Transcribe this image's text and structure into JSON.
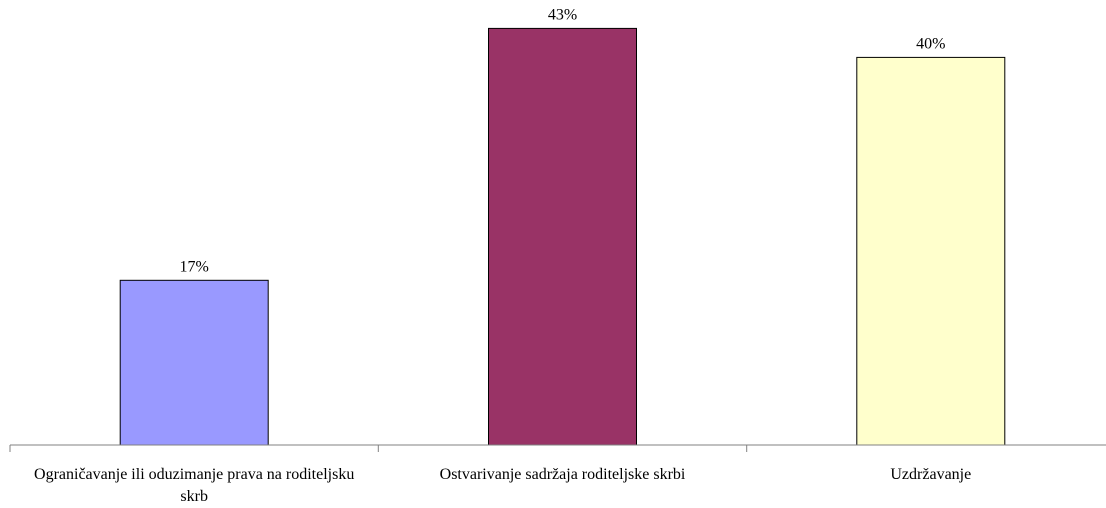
{
  "chart_data": {
    "type": "bar",
    "categories": [
      "Ograničavanje ili oduzimanje prava na roditeljsku skrb",
      "Ostvarivanje sadržaja roditeljske skrbi",
      "Uzdržavanje"
    ],
    "values": [
      17,
      43,
      40
    ],
    "data_labels": [
      "17%",
      "43%",
      "40%"
    ],
    "value_unit": "%",
    "colors": [
      "#9999ff",
      "#993366",
      "#ffffcc"
    ],
    "bar_outline_color": "#000000",
    "ylim": [
      0,
      45
    ],
    "grid": false,
    "legend": "none",
    "title": "",
    "xlabel": "",
    "ylabel": ""
  }
}
